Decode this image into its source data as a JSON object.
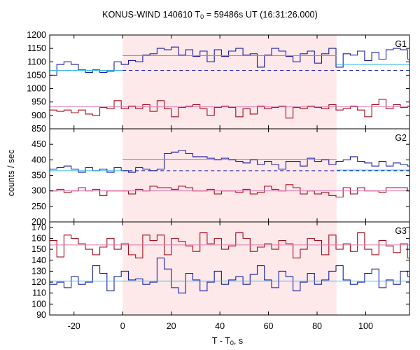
{
  "title": {
    "main": "KONUS-WIND 140610 T",
    "sub": "0",
    "rest": " = 59486s UT (16:31:26.000)"
  },
  "xlabel": {
    "main": "T - T",
    "sub": "0",
    "rest": ", s"
  },
  "ylabel": "counts / sec",
  "chart_data": {
    "type": "line",
    "title": "KONUS-WIND 140610 T0 = 59486s UT (16:31:26.000)",
    "xlabel": "T - T0, s",
    "ylabel": "counts / sec",
    "xlim": [
      -30,
      118
    ],
    "xticks": [
      -20,
      0,
      20,
      40,
      60,
      80,
      100
    ],
    "highlight_interval": [
      0,
      88
    ],
    "highlight_color": "#fde8ea",
    "colors": {
      "blue": "#1a1fa6",
      "red": "#a50d1c",
      "cyan": "#35b6e6",
      "pink": "#e07ab0"
    },
    "bin_start": -30,
    "bin_width": 2.944,
    "panels": [
      {
        "label": "G1",
        "ylim": [
          850,
          1200
        ],
        "yticks": [
          850,
          900,
          950,
          1000,
          1050,
          1100,
          1150,
          1200
        ],
        "series": [
          {
            "color": "blue",
            "values": [
              1050,
              1090,
              1100,
              1090,
              1070,
              1060,
              1070,
              1060,
              1065,
              1100,
              1090,
              1105,
              1100,
              1125,
              1130,
              1150,
              1145,
              1155,
              1125,
              1145,
              1120,
              1140,
              1100,
              1145,
              1120,
              1140,
              1150,
              1125,
              1130,
              1080,
              1125,
              1150,
              1140,
              1120,
              1100,
              1130,
              1140,
              1095,
              1130,
              1150,
              1080,
              1130,
              1125,
              1140,
              1105,
              1135,
              1110,
              1145,
              1150,
              1145,
              1110,
              1090,
              1095,
              1100,
              1085,
              1095,
              1110,
              1080,
              1100,
              1080,
              1090,
              1065,
              1090,
              1065,
              1080,
              1070,
              1100,
              1060,
              1075,
              1060
            ]
          },
          {
            "color": "red",
            "values": [
              920,
              915,
              920,
              910,
              920,
              905,
              900,
              930,
              925,
              955,
              925,
              935,
              925,
              940,
              915,
              955,
              925,
              895,
              930,
              935,
              940,
              925,
              900,
              930,
              935,
              930,
              895,
              925,
              905,
              935,
              925,
              930,
              935,
              890,
              930,
              925,
              935,
              930,
              925,
              940,
              920,
              925,
              935,
              920,
              895,
              940,
              960,
              925,
              940,
              930,
              935,
              935,
              930,
              940,
              935,
              925,
              930,
              920,
              905,
              920,
              935,
              910,
              930,
              925,
              915,
              935,
              930,
              905,
              925,
              930
            ]
          },
          {
            "color": "cyan",
            "fit": true,
            "segments": [
              [
                -30,
                0,
                1068
              ],
              [
                0,
                88,
                1123
              ],
              [
                88,
                118,
                1090
              ]
            ]
          },
          {
            "color": "blue",
            "dashed": true,
            "segments": [
              [
                0,
                118,
                1068
              ]
            ]
          },
          {
            "color": "pink",
            "fit": true,
            "segments": [
              [
                -30,
                118,
                932
              ]
            ]
          }
        ]
      },
      {
        "label": "G2",
        "ylim": [
          200,
          500
        ],
        "yticks": [
          200,
          250,
          300,
          350,
          400,
          450
        ],
        "series": [
          {
            "color": "blue",
            "values": [
              370,
              375,
              380,
              370,
              360,
              375,
              365,
              370,
              360,
              375,
              365,
              360,
              375,
              370,
              365,
              370,
              420,
              425,
              430,
              420,
              410,
              410,
              405,
              400,
              405,
              400,
              395,
              390,
              400,
              385,
              395,
              385,
              370,
              395,
              395,
              380,
              405,
              395,
              400,
              385,
              395,
              400,
              410,
              395,
              390,
              380,
              395,
              380,
              390,
              385,
              380,
              370,
              385,
              370,
              375,
              385,
              380,
              380,
              365,
              370,
              380,
              370,
              365,
              360,
              375,
              360,
              370,
              360,
              365,
              370
            ]
          },
          {
            "color": "red",
            "values": [
              300,
              305,
              295,
              300,
              310,
              300,
              305,
              285,
              300,
              300,
              300,
              290,
              305,
              300,
              315,
              310,
              310,
              305,
              315,
              310,
              300,
              300,
              305,
              290,
              300,
              300,
              295,
              305,
              290,
              295,
              315,
              305,
              300,
              320,
              310,
              290,
              300,
              290,
              295,
              285,
              280,
              310,
              290,
              310,
              300,
              300,
              295,
              310,
              310,
              310,
              300,
              280,
              300,
              305,
              290,
              300,
              300,
              315,
              300,
              305,
              295,
              300,
              305,
              300,
              315,
              310,
              300,
              305,
              320,
              310
            ]
          },
          {
            "color": "cyan",
            "fit": true,
            "segments": [
              [
                -30,
                0,
                365
              ],
              [
                0,
                88,
                402
              ],
              [
                88,
                118,
                367
              ]
            ]
          },
          {
            "color": "blue",
            "dashed": true,
            "segments": [
              [
                0,
                118,
                365
              ]
            ]
          },
          {
            "color": "pink",
            "fit": true,
            "segments": [
              [
                -30,
                118,
                300
              ]
            ]
          }
        ]
      },
      {
        "label": "G3",
        "ylim": [
          90,
          175
        ],
        "yticks": [
          90,
          100,
          110,
          120,
          130,
          140,
          150,
          160,
          170
        ],
        "series": [
          {
            "color": "red",
            "values": [
              158,
              143,
              163,
              160,
              155,
              150,
              145,
              152,
              160,
              150,
              155,
              145,
              142,
              163,
              158,
              163,
              145,
              160,
              157,
              153,
              148,
              165,
              155,
              160,
              150,
              153,
              165,
              160,
              148,
              152,
              155,
              150,
              158,
              155,
              142,
              150,
              160,
              158,
              145,
              163,
              150,
              155,
              148,
              165,
              150,
              145,
              158,
              153,
              147,
              155,
              142,
              158,
              150,
              155,
              148,
              152,
              155,
              158,
              163,
              145,
              155,
              152,
              160,
              155,
              165,
              150,
              155,
              148,
              158,
              152
            ]
          },
          {
            "color": "blue",
            "values": [
              118,
              120,
              115,
              125,
              118,
              120,
              135,
              128,
              112,
              125,
              130,
              122,
              123,
              118,
              120,
              142,
              132,
              115,
              110,
              128,
              122,
              112,
              120,
              130,
              118,
              122,
              125,
              118,
              127,
              135,
              122,
              115,
              130,
              125,
              112,
              120,
              128,
              118,
              122,
              130,
              135,
              122,
              118,
              120,
              128,
              132,
              115,
              122,
              118,
              130,
              125,
              132,
              120,
              128,
              120,
              102,
              118,
              125,
              120,
              110,
              125,
              128,
              118,
              120,
              132,
              120,
              115,
              122,
              138,
              115
            ]
          },
          {
            "color": "cyan",
            "fit": true,
            "segments": [
              [
                -30,
                118,
                121
              ]
            ]
          },
          {
            "color": "pink",
            "fit": true,
            "segments": [
              [
                -30,
                118,
                154
              ]
            ]
          }
        ]
      }
    ]
  }
}
